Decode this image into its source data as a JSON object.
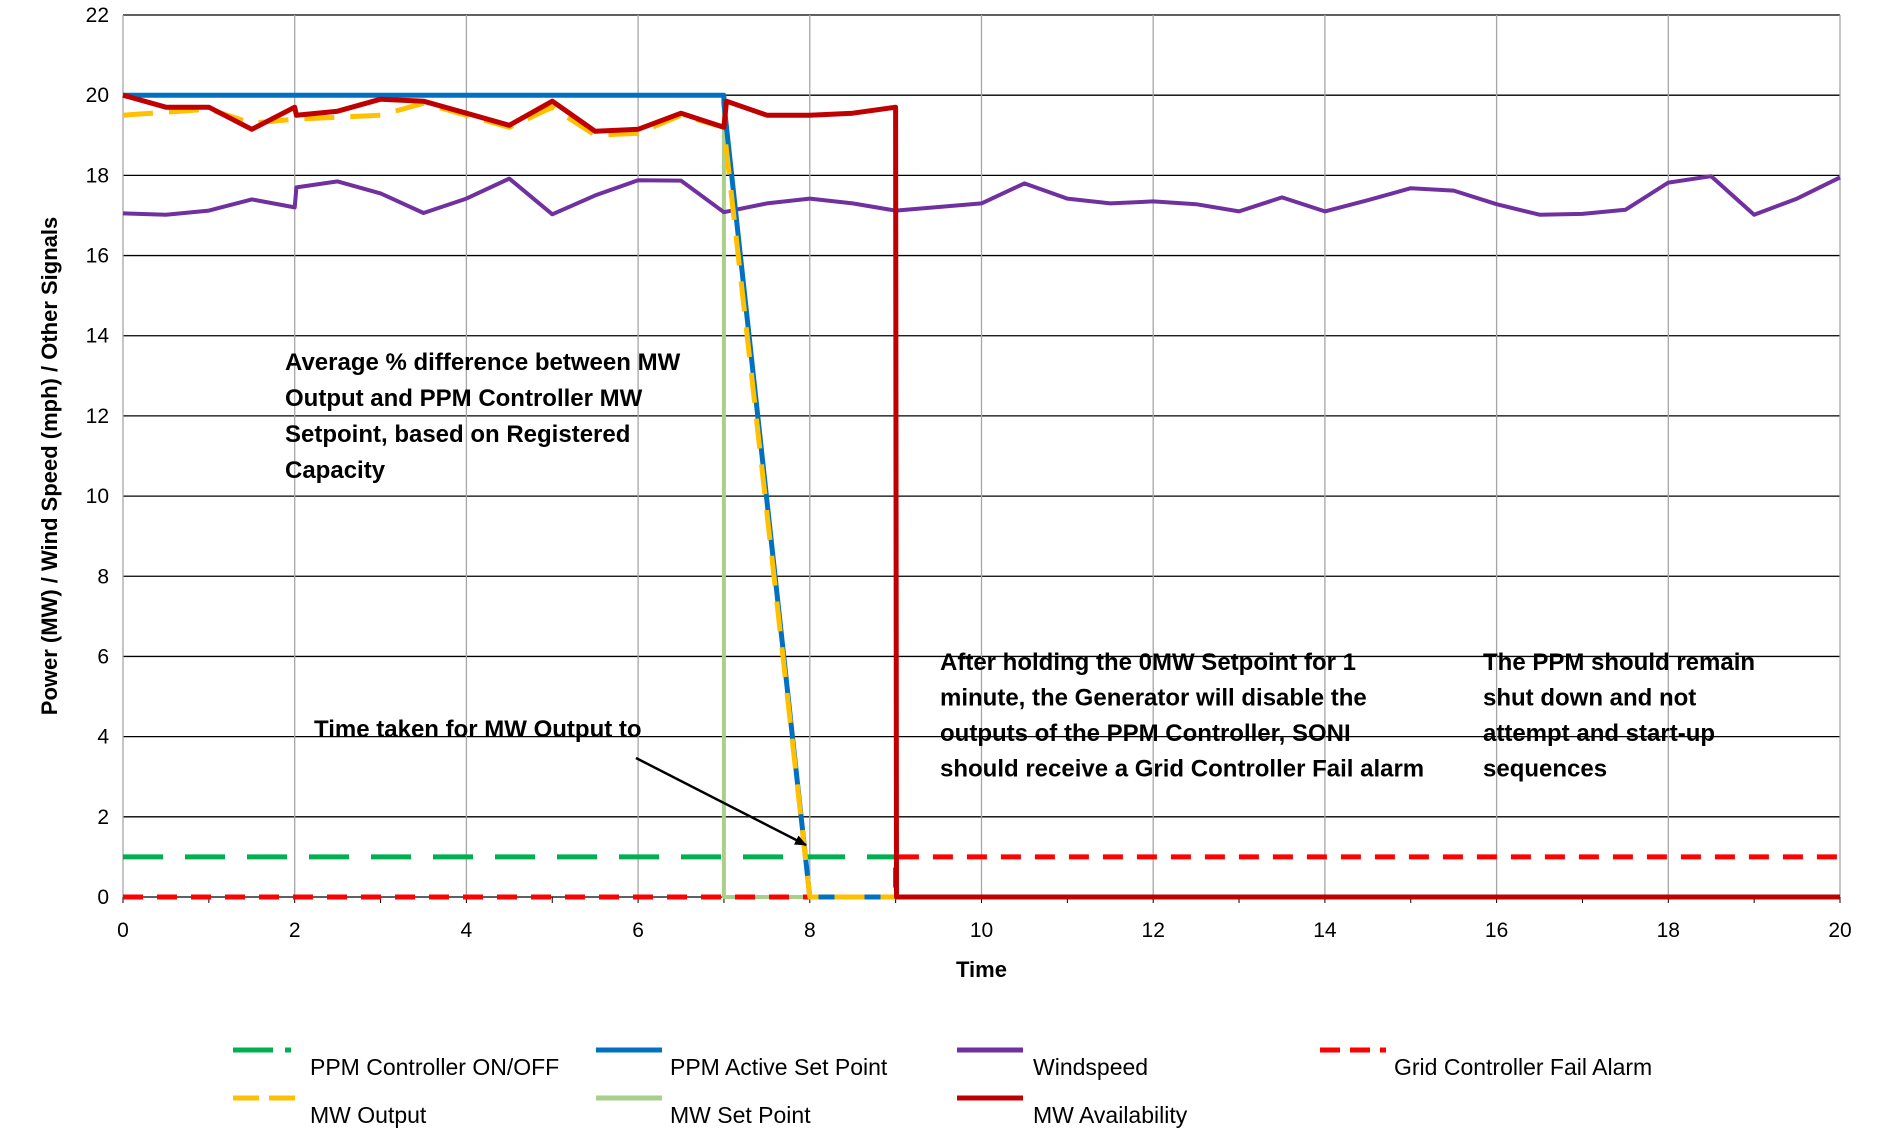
{
  "chart_data": {
    "type": "line",
    "title": "",
    "xlabel": "Time",
    "ylabel": "Power (MW) / Wind Speed (mph) / Other Signals",
    "xlim": [
      0,
      20
    ],
    "ylim": [
      0,
      22
    ],
    "x_ticks": [
      "0",
      "2",
      "4",
      "6",
      "8",
      "10",
      "12",
      "14",
      "16",
      "18",
      "20"
    ],
    "y_ticks": [
      "0",
      "2",
      "4",
      "6",
      "8",
      "10",
      "12",
      "14",
      "16",
      "18",
      "20",
      "22"
    ],
    "grid": {
      "horizontal": true,
      "vertical": true
    },
    "legend_position": "bottom",
    "series": [
      {
        "name": "PPM Controller ON/OFF",
        "color": "#00b050",
        "dash": "long-dash",
        "x": [
          0,
          9
        ],
        "y": [
          1,
          1
        ]
      },
      {
        "name": "PPM Active Set Point",
        "color": "#0070c0",
        "dash": "solid",
        "x": [
          0,
          7,
          7,
          8,
          9
        ],
        "y": [
          20,
          20,
          19.8,
          0,
          0
        ]
      },
      {
        "name": "Windspeed",
        "color": "#7030a0",
        "dash": "solid",
        "x": [
          0,
          0.5,
          1,
          1.5,
          2,
          2.02,
          2.5,
          3,
          3.5,
          4,
          4.5,
          5,
          5.5,
          6,
          6.5,
          7,
          7.5,
          8,
          8.5,
          9,
          10,
          10.5,
          11,
          11.5,
          12,
          12.5,
          13,
          13.5,
          14,
          14.5,
          15,
          15.5,
          16,
          16.5,
          17,
          17.5,
          18,
          18.5,
          19,
          19.5,
          20
        ],
        "y": [
          17.05,
          17.02,
          17.12,
          17.4,
          17.2,
          17.7,
          17.85,
          17.55,
          17.06,
          17.42,
          17.92,
          17.03,
          17.5,
          17.88,
          17.87,
          17.08,
          17.3,
          17.42,
          17.3,
          17.12,
          17.3,
          17.8,
          17.42,
          17.3,
          17.35,
          17.28,
          17.1,
          17.45,
          17.1,
          17.38,
          17.68,
          17.62,
          17.28,
          17.02,
          17.04,
          17.14,
          17.82,
          17.98,
          17.02,
          17.42,
          17.95
        ]
      },
      {
        "name": "Grid Controller Fail Alarm",
        "color": "#ff0000",
        "dash": "short-dash",
        "x": [
          0,
          9,
          9,
          20
        ],
        "y": [
          0,
          0,
          1,
          1
        ]
      },
      {
        "name": "MW Output",
        "color": "#ffc000",
        "dash": "dash",
        "x": [
          0,
          1,
          1.5,
          2,
          2.5,
          3,
          3.5,
          4,
          4.5,
          5,
          5.5,
          6,
          6.5,
          7,
          8,
          9
        ],
        "y": [
          19.5,
          19.65,
          19.3,
          19.4,
          19.45,
          19.5,
          19.8,
          19.5,
          19.2,
          19.7,
          19.0,
          19.05,
          19.5,
          19.2,
          0,
          0
        ]
      },
      {
        "name": "MW Set Point",
        "color": "#a9cf8b",
        "dash": "solid",
        "x": [
          0,
          7,
          7,
          9
        ],
        "y": [
          20,
          20,
          0,
          0
        ]
      },
      {
        "name": "MW Availability",
        "color": "#c00000",
        "dash": "solid",
        "x": [
          0,
          0.5,
          1,
          1.5,
          2,
          2.02,
          2.5,
          3,
          3.5,
          4,
          4.5,
          5,
          5.5,
          6,
          6.5,
          7,
          7.03,
          7.5,
          8,
          8.5,
          9,
          9.01,
          20
        ],
        "y": [
          20,
          19.7,
          19.7,
          19.15,
          19.7,
          19.5,
          19.6,
          19.9,
          19.85,
          19.55,
          19.25,
          19.85,
          19.1,
          19.15,
          19.55,
          19.2,
          19.85,
          19.5,
          19.5,
          19.55,
          19.7,
          0,
          0
        ]
      }
    ],
    "annotations": [
      {
        "id": "avg-diff",
        "lines": [
          "Average % difference between MW",
          "Output and PPM Controller MW",
          "Setpoint, based on Registered",
          "Capacity"
        ]
      },
      {
        "id": "time-taken",
        "lines": [
          "Time taken for MW Output to"
        ]
      },
      {
        "id": "after-holding",
        "lines": [
          "After holding the 0MW Setpoint for 1",
          "minute, the Generator will disable the",
          "outputs of the PPM Controller, SONI",
          "should receive a Grid Controller Fail alarm"
        ]
      },
      {
        "id": "ppm-remain",
        "lines": [
          "The PPM should remain",
          "shut down and not",
          "attempt and start-up",
          "sequences"
        ]
      }
    ]
  }
}
